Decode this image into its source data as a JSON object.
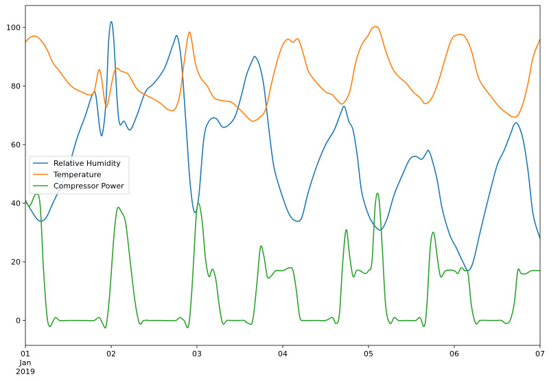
{
  "chart_data": {
    "type": "line",
    "title": "",
    "xlabel": "",
    "ylabel": "",
    "x_ticks": [
      {
        "day": 0,
        "lines": [
          "01",
          "Jan",
          "2019"
        ]
      },
      {
        "day": 1,
        "lines": [
          "02"
        ]
      },
      {
        "day": 2,
        "lines": [
          "03"
        ]
      },
      {
        "day": 3,
        "lines": [
          "04"
        ]
      },
      {
        "day": 4,
        "lines": [
          "05"
        ]
      },
      {
        "day": 5,
        "lines": [
          "06"
        ]
      },
      {
        "day": 6,
        "lines": [
          "07"
        ]
      }
    ],
    "y_ticks": [
      0,
      20,
      40,
      60,
      80,
      100
    ],
    "xlim": [
      0,
      6
    ],
    "ylim": [
      -8.5,
      107.5
    ],
    "legend_position": "center-left",
    "series": [
      {
        "name": "Relative Humidity",
        "color": "#1f77b4",
        "points": [
          [
            0.0,
            41
          ],
          [
            0.08,
            37
          ],
          [
            0.16,
            34
          ],
          [
            0.24,
            35
          ],
          [
            0.32,
            40
          ],
          [
            0.4,
            45
          ],
          [
            0.5,
            52
          ],
          [
            0.6,
            62
          ],
          [
            0.7,
            70
          ],
          [
            0.78,
            77
          ],
          [
            0.82,
            77
          ],
          [
            0.87,
            65
          ],
          [
            0.9,
            64
          ],
          [
            0.94,
            75
          ],
          [
            0.97,
            95
          ],
          [
            1.0,
            102
          ],
          [
            1.03,
            96
          ],
          [
            1.07,
            75
          ],
          [
            1.1,
            67
          ],
          [
            1.15,
            68
          ],
          [
            1.22,
            65
          ],
          [
            1.3,
            70
          ],
          [
            1.4,
            78
          ],
          [
            1.5,
            81
          ],
          [
            1.62,
            86
          ],
          [
            1.72,
            94
          ],
          [
            1.77,
            97
          ],
          [
            1.82,
            88
          ],
          [
            1.87,
            68
          ],
          [
            1.92,
            47
          ],
          [
            1.97,
            37
          ],
          [
            2.02,
            42
          ],
          [
            2.08,
            62
          ],
          [
            2.14,
            68
          ],
          [
            2.22,
            69
          ],
          [
            2.3,
            66
          ],
          [
            2.38,
            67
          ],
          [
            2.45,
            70
          ],
          [
            2.52,
            77
          ],
          [
            2.58,
            84
          ],
          [
            2.65,
            89
          ],
          [
            2.68,
            90
          ],
          [
            2.73,
            87
          ],
          [
            2.78,
            80
          ],
          [
            2.84,
            65
          ],
          [
            2.9,
            52
          ],
          [
            3.0,
            42
          ],
          [
            3.08,
            36
          ],
          [
            3.15,
            34
          ],
          [
            3.22,
            35
          ],
          [
            3.3,
            44
          ],
          [
            3.4,
            53
          ],
          [
            3.5,
            60
          ],
          [
            3.6,
            65
          ],
          [
            3.68,
            71
          ],
          [
            3.72,
            73
          ],
          [
            3.77,
            68
          ],
          [
            3.82,
            65
          ],
          [
            3.87,
            56
          ],
          [
            3.92,
            44
          ],
          [
            4.0,
            36
          ],
          [
            4.08,
            32
          ],
          [
            4.15,
            31
          ],
          [
            4.22,
            35
          ],
          [
            4.3,
            43
          ],
          [
            4.4,
            50
          ],
          [
            4.48,
            55
          ],
          [
            4.55,
            56
          ],
          [
            4.62,
            55
          ],
          [
            4.67,
            57
          ],
          [
            4.7,
            58
          ],
          [
            4.74,
            55
          ],
          [
            4.8,
            48
          ],
          [
            4.86,
            38
          ],
          [
            4.95,
            29
          ],
          [
            5.02,
            25
          ],
          [
            5.1,
            20
          ],
          [
            5.16,
            17
          ],
          [
            5.22,
            20
          ],
          [
            5.3,
            30
          ],
          [
            5.4,
            42
          ],
          [
            5.5,
            53
          ],
          [
            5.58,
            58
          ],
          [
            5.66,
            64
          ],
          [
            5.7,
            67
          ],
          [
            5.74,
            67
          ],
          [
            5.8,
            62
          ],
          [
            5.86,
            51
          ],
          [
            5.92,
            36
          ],
          [
            6.0,
            28
          ]
        ]
      },
      {
        "name": "Temperature",
        "color": "#ff7f0e",
        "points": [
          [
            0.0,
            95
          ],
          [
            0.05,
            96.5
          ],
          [
            0.12,
            97
          ],
          [
            0.2,
            95
          ],
          [
            0.26,
            92
          ],
          [
            0.32,
            88
          ],
          [
            0.4,
            85
          ],
          [
            0.5,
            81
          ],
          [
            0.58,
            79
          ],
          [
            0.66,
            78
          ],
          [
            0.74,
            77
          ],
          [
            0.8,
            78
          ],
          [
            0.85,
            85
          ],
          [
            0.88,
            84
          ],
          [
            0.93,
            74
          ],
          [
            0.96,
            74
          ],
          [
            1.02,
            83
          ],
          [
            1.06,
            86
          ],
          [
            1.12,
            85
          ],
          [
            1.2,
            84
          ],
          [
            1.3,
            79
          ],
          [
            1.4,
            77
          ],
          [
            1.5,
            75.5
          ],
          [
            1.58,
            74
          ],
          [
            1.66,
            72
          ],
          [
            1.74,
            72
          ],
          [
            1.8,
            77
          ],
          [
            1.85,
            88
          ],
          [
            1.9,
            97.5
          ],
          [
            1.93,
            97
          ],
          [
            1.98,
            88
          ],
          [
            2.04,
            83
          ],
          [
            2.12,
            80
          ],
          [
            2.2,
            76
          ],
          [
            2.3,
            75
          ],
          [
            2.4,
            74.5
          ],
          [
            2.5,
            72
          ],
          [
            2.58,
            69.5
          ],
          [
            2.65,
            68
          ],
          [
            2.72,
            69
          ],
          [
            2.8,
            72
          ],
          [
            2.87,
            81
          ],
          [
            2.94,
            89
          ],
          [
            3.0,
            94
          ],
          [
            3.06,
            96
          ],
          [
            3.12,
            95
          ],
          [
            3.18,
            96
          ],
          [
            3.24,
            91
          ],
          [
            3.3,
            85
          ],
          [
            3.4,
            81
          ],
          [
            3.5,
            78
          ],
          [
            3.58,
            77
          ],
          [
            3.64,
            75
          ],
          [
            3.7,
            74
          ],
          [
            3.78,
            78
          ],
          [
            3.85,
            88
          ],
          [
            3.92,
            94
          ],
          [
            4.0,
            97.5
          ],
          [
            4.05,
            100
          ],
          [
            4.12,
            99.5
          ],
          [
            4.2,
            92
          ],
          [
            4.28,
            86
          ],
          [
            4.36,
            83
          ],
          [
            4.44,
            81
          ],
          [
            4.52,
            78
          ],
          [
            4.6,
            76
          ],
          [
            4.66,
            74
          ],
          [
            4.74,
            76
          ],
          [
            4.82,
            82
          ],
          [
            4.9,
            90
          ],
          [
            4.97,
            96
          ],
          [
            5.04,
            97.5
          ],
          [
            5.12,
            97
          ],
          [
            5.2,
            92
          ],
          [
            5.28,
            83
          ],
          [
            5.36,
            79
          ],
          [
            5.44,
            76
          ],
          [
            5.52,
            73
          ],
          [
            5.6,
            71
          ],
          [
            5.68,
            69.5
          ],
          [
            5.74,
            70
          ],
          [
            5.8,
            74
          ],
          [
            5.86,
            81
          ],
          [
            5.92,
            90
          ],
          [
            6.0,
            96
          ]
        ]
      },
      {
        "name": "Compressor Power",
        "color": "#2ca02c",
        "points": [
          [
            0.0,
            41
          ],
          [
            0.04,
            39
          ],
          [
            0.07,
            40
          ],
          [
            0.12,
            43
          ],
          [
            0.17,
            40
          ],
          [
            0.21,
            18
          ],
          [
            0.25,
            2
          ],
          [
            0.28,
            -2
          ],
          [
            0.31,
            -1
          ],
          [
            0.35,
            1
          ],
          [
            0.4,
            0
          ],
          [
            0.5,
            0
          ],
          [
            0.6,
            0
          ],
          [
            0.7,
            0
          ],
          [
            0.8,
            0
          ],
          [
            0.86,
            1
          ],
          [
            0.9,
            -1
          ],
          [
            0.94,
            -2
          ],
          [
            0.98,
            8
          ],
          [
            1.03,
            28
          ],
          [
            1.07,
            38
          ],
          [
            1.12,
            37
          ],
          [
            1.17,
            33
          ],
          [
            1.23,
            18
          ],
          [
            1.28,
            6
          ],
          [
            1.33,
            -1
          ],
          [
            1.38,
            0
          ],
          [
            1.45,
            0
          ],
          [
            1.6,
            0
          ],
          [
            1.75,
            0
          ],
          [
            1.8,
            1
          ],
          [
            1.85,
            0
          ],
          [
            1.9,
            -2
          ],
          [
            1.94,
            10
          ],
          [
            1.99,
            35
          ],
          [
            2.02,
            40
          ],
          [
            2.06,
            34
          ],
          [
            2.1,
            21
          ],
          [
            2.14,
            15
          ],
          [
            2.18,
            17.5
          ],
          [
            2.22,
            14
          ],
          [
            2.26,
            5
          ],
          [
            2.3,
            -1
          ],
          [
            2.35,
            0
          ],
          [
            2.4,
            0
          ],
          [
            2.45,
            0
          ],
          [
            2.5,
            0
          ],
          [
            2.55,
            0
          ],
          [
            2.6,
            -1
          ],
          [
            2.65,
            0
          ],
          [
            2.7,
            13
          ],
          [
            2.74,
            25
          ],
          [
            2.78,
            22
          ],
          [
            2.82,
            15
          ],
          [
            2.86,
            15
          ],
          [
            2.92,
            17
          ],
          [
            3.0,
            17
          ],
          [
            3.08,
            18
          ],
          [
            3.12,
            17
          ],
          [
            3.16,
            10
          ],
          [
            3.2,
            1
          ],
          [
            3.25,
            0
          ],
          [
            3.3,
            0
          ],
          [
            3.4,
            0
          ],
          [
            3.5,
            0
          ],
          [
            3.58,
            1
          ],
          [
            3.62,
            -1
          ],
          [
            3.66,
            2
          ],
          [
            3.7,
            20
          ],
          [
            3.74,
            31
          ],
          [
            3.78,
            22
          ],
          [
            3.82,
            15
          ],
          [
            3.86,
            17
          ],
          [
            3.9,
            17
          ],
          [
            3.96,
            16
          ],
          [
            4.0,
            17
          ],
          [
            4.04,
            20
          ],
          [
            4.08,
            40
          ],
          [
            4.12,
            42
          ],
          [
            4.16,
            25
          ],
          [
            4.2,
            5
          ],
          [
            4.25,
            -1
          ],
          [
            4.3,
            1
          ],
          [
            4.35,
            0
          ],
          [
            4.45,
            0
          ],
          [
            4.55,
            0
          ],
          [
            4.6,
            1
          ],
          [
            4.65,
            -2
          ],
          [
            4.68,
            5
          ],
          [
            4.72,
            25
          ],
          [
            4.76,
            30
          ],
          [
            4.8,
            22
          ],
          [
            4.84,
            15
          ],
          [
            4.9,
            17
          ],
          [
            5.0,
            17
          ],
          [
            5.04,
            16
          ],
          [
            5.08,
            18
          ],
          [
            5.12,
            17
          ],
          [
            5.16,
            16
          ],
          [
            5.2,
            5
          ],
          [
            5.25,
            -1
          ],
          [
            5.3,
            0
          ],
          [
            5.4,
            0
          ],
          [
            5.5,
            0
          ],
          [
            5.55,
            0
          ],
          [
            5.6,
            -1
          ],
          [
            5.65,
            0
          ],
          [
            5.7,
            6
          ],
          [
            5.74,
            17
          ],
          [
            5.78,
            16
          ],
          [
            5.84,
            16
          ],
          [
            5.9,
            17
          ],
          [
            6.0,
            17
          ]
        ]
      }
    ]
  }
}
